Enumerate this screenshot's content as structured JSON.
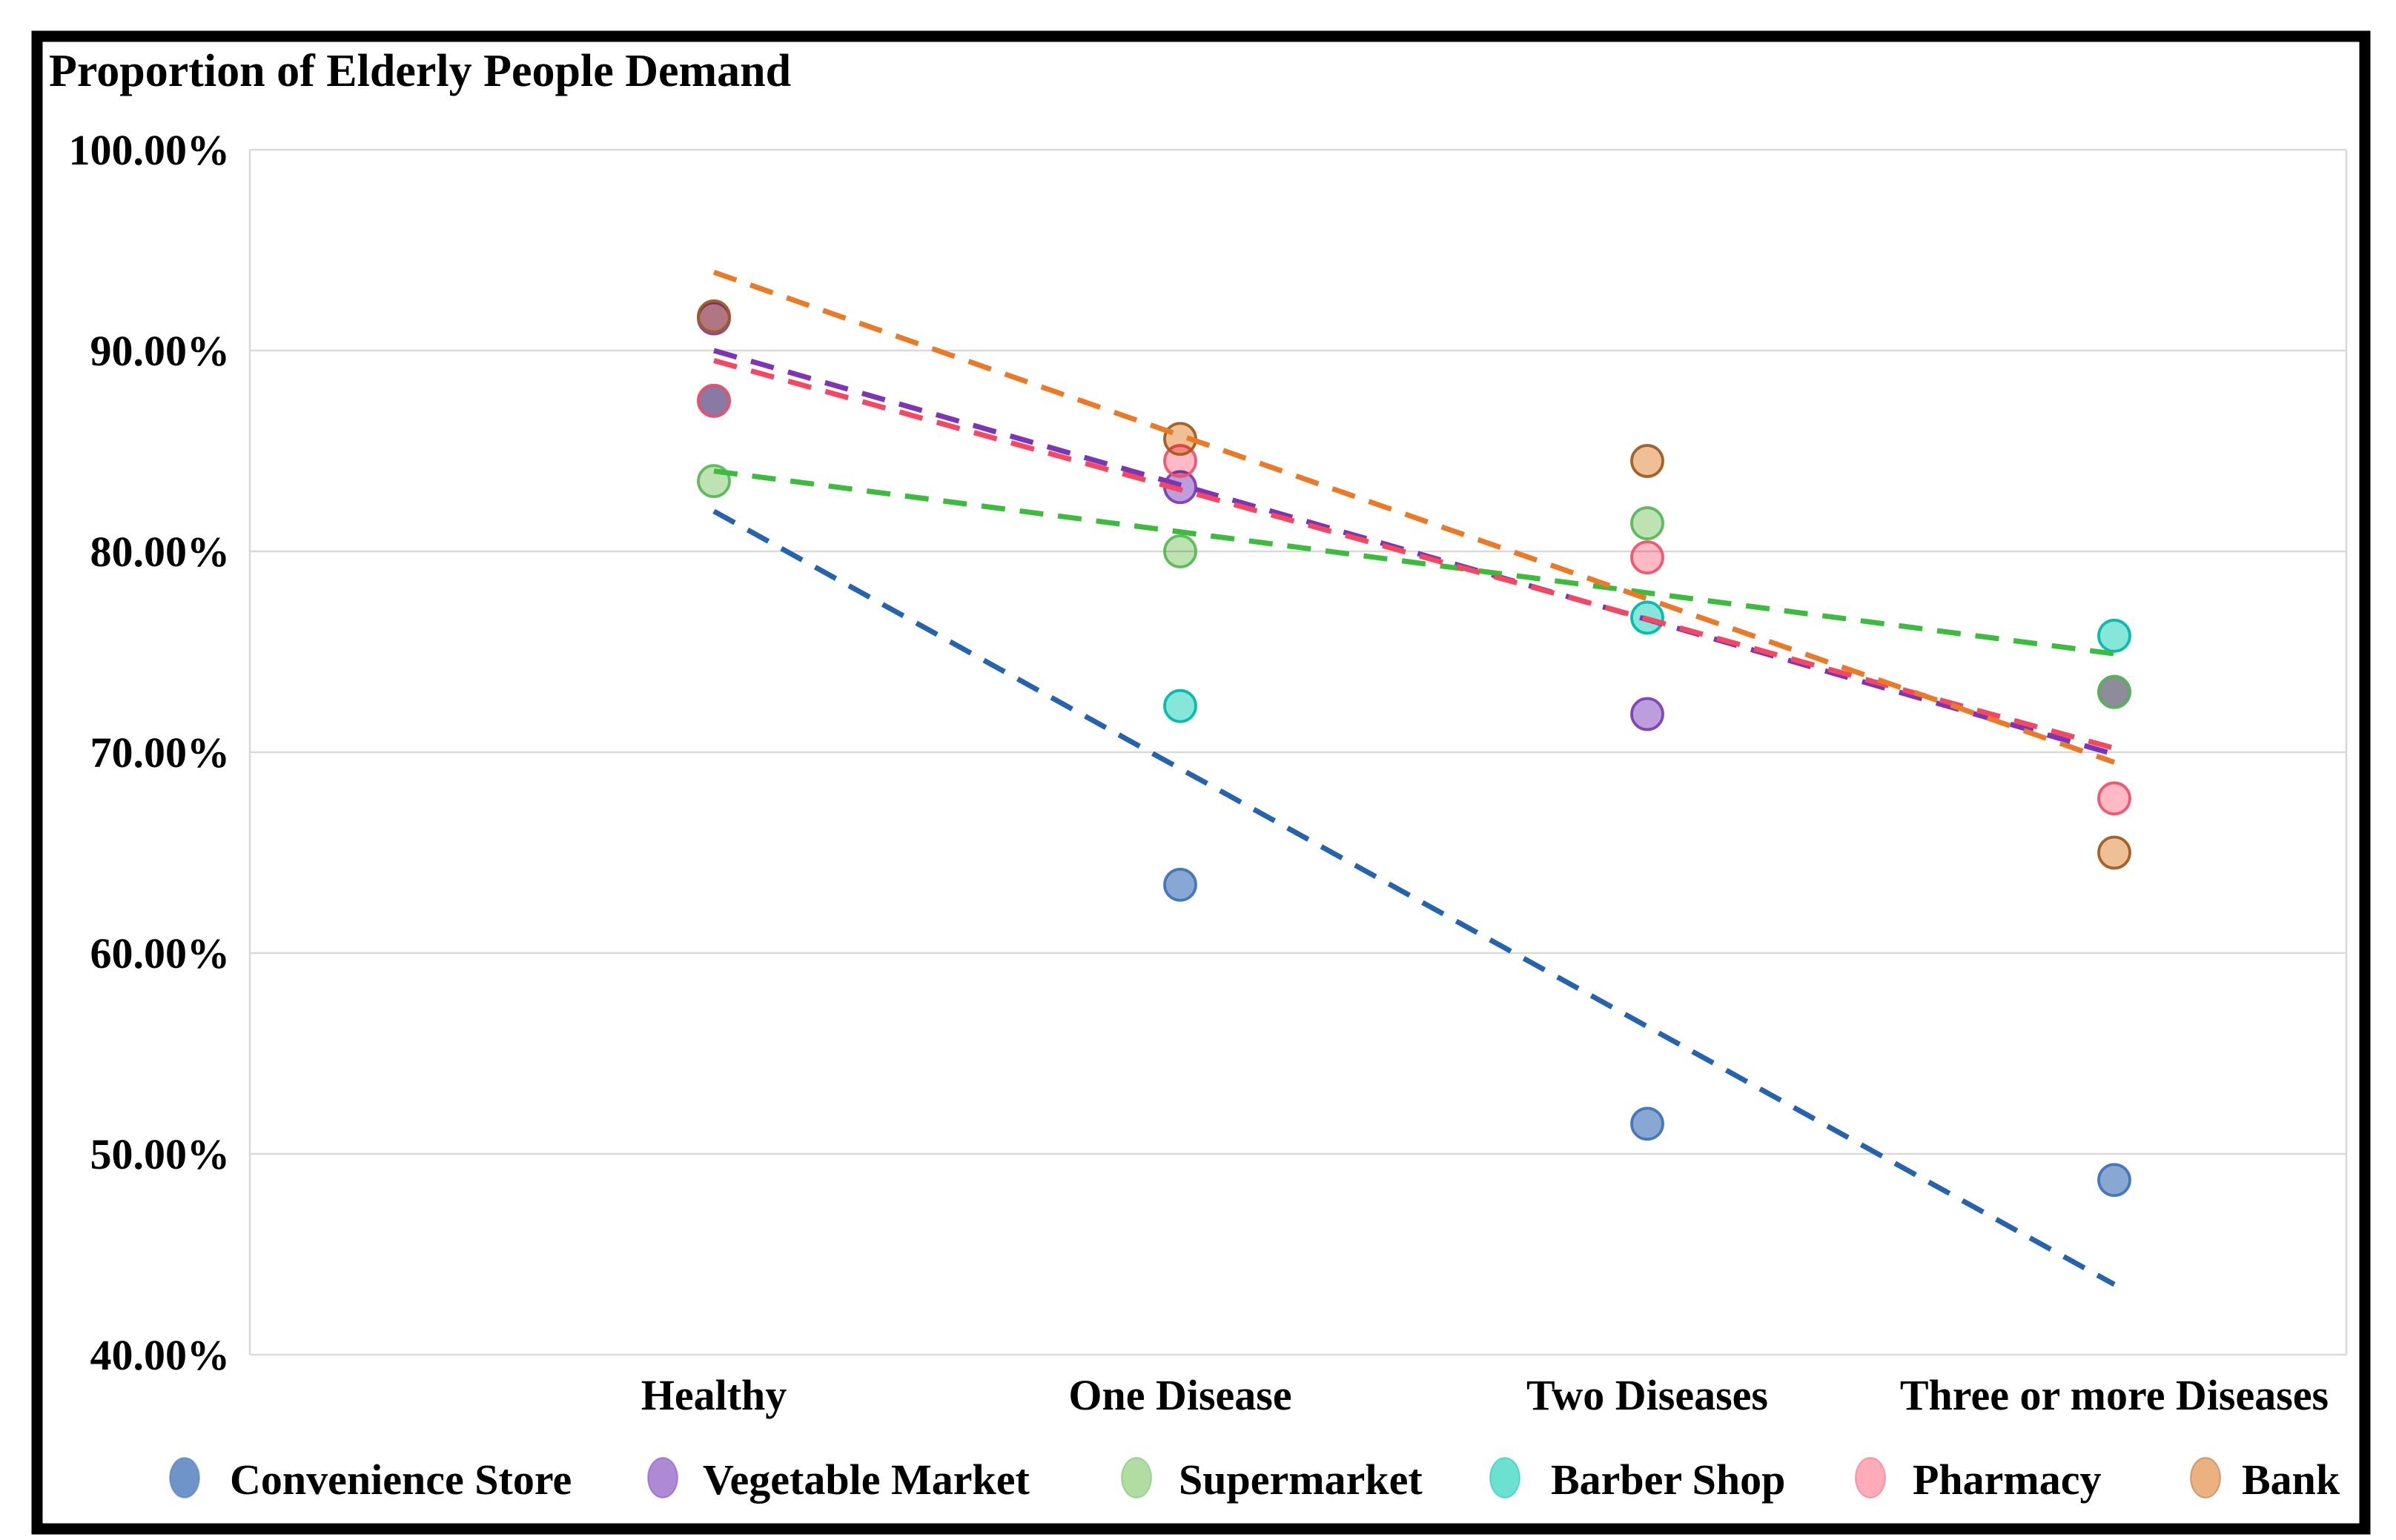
{
  "chart_data": {
    "type": "scatter",
    "title": "Proportion of Elderly People Demand",
    "categories": [
      "Healthy",
      "One Disease",
      "Two Diseases",
      "Three or more Diseases"
    ],
    "y_axis": {
      "min": 40,
      "max": 100,
      "tick_step": 10,
      "tick_labels": [
        "100.00%",
        "90.00%",
        "80.00%",
        "70.00%",
        "60.00%",
        "50.00%",
        "40.00%"
      ],
      "grid": true,
      "gridline_color": "#d9d9d9"
    },
    "marker_style": "semi-transparent circle with darker outline, overlapping markers blend",
    "trendline_style": "dashed linear fit from first to last category",
    "legend_position": "bottom",
    "series": [
      {
        "name": "Convenience Store",
        "values": [
          87.5,
          63.4,
          51.5,
          48.7
        ],
        "fill": "#5b85c2",
        "stroke": "#3f74b8",
        "trend_color": "#2563ae",
        "trendline": {
          "start": 82.0,
          "end": 43.5
        }
      },
      {
        "name": "Vegetable Market",
        "values": [
          91.6,
          83.2,
          71.9,
          73.0
        ],
        "fill": "#a379ce",
        "stroke": "#7b3fb5",
        "trend_color": "#7d35b5",
        "trendline": {
          "start": 90.0,
          "end": 69.9
        }
      },
      {
        "name": "Supermarket",
        "values": [
          83.5,
          80.0,
          81.4,
          73.0
        ],
        "fill": "#a6d795",
        "stroke": "#58b856",
        "trend_color": "#3cbb3c",
        "trendline": {
          "start": 84.0,
          "end": 74.9
        }
      },
      {
        "name": "Barber Shop",
        "values": [
          null,
          72.3,
          76.7,
          75.8
        ],
        "fill": "#58dccb",
        "stroke": "#00b8ac",
        "trend_color": null,
        "trendline": null
      },
      {
        "name": "Pharmacy",
        "values": [
          87.5,
          84.5,
          79.7,
          67.7
        ],
        "fill": "#ff9fae",
        "stroke": "#f0516a",
        "trend_color": "#f44862",
        "trendline": {
          "start": 89.5,
          "end": 70.2
        }
      },
      {
        "name": "Bank",
        "values": [
          91.7,
          85.6,
          84.5,
          65.0
        ],
        "fill": "#e9a66e",
        "stroke": "#9f5c22",
        "trend_color": "#ea7a28",
        "trendline": {
          "start": 93.9,
          "end": 69.5
        }
      }
    ],
    "frame_color": "#000000"
  }
}
